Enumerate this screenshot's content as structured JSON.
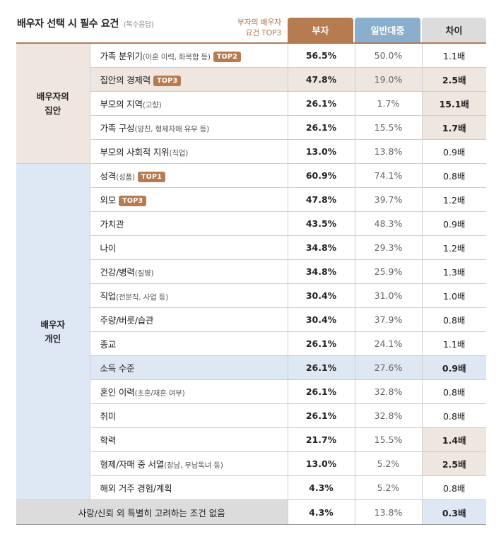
{
  "title": "배우자 선택 시 필수 요건",
  "title_sub": "(복수응답)",
  "top3_legend": [
    "부자의 배우자",
    "요건 TOP3"
  ],
  "headers": {
    "rich": "부자",
    "general": "일반대중",
    "diff": "차이"
  },
  "categories": {
    "family": [
      "배우자의",
      "집안"
    ],
    "personal": [
      "배우자",
      "개인"
    ]
  },
  "rows": [
    {
      "label": "가족 분위기",
      "note": "(이혼 이력, 화목함 등)",
      "tag": "TOP2",
      "rich": "56.5%",
      "general": "50.0%",
      "diff": "1.1배"
    },
    {
      "label": "집안의 경제력",
      "note": "",
      "tag": "TOP3",
      "rich": "47.8%",
      "general": "19.0%",
      "diff": "2.5배"
    },
    {
      "label": "부모의 지역",
      "note": "(고향)",
      "tag": "",
      "rich": "26.1%",
      "general": "1.7%",
      "diff": "15.1배"
    },
    {
      "label": "가족 구성",
      "note": "(양친, 형제자매 유무 등)",
      "tag": "",
      "rich": "26.1%",
      "general": "15.5%",
      "diff": "1.7배"
    },
    {
      "label": "부모의 사회적 지위",
      "note": "(직업)",
      "tag": "",
      "rich": "13.0%",
      "general": "13.8%",
      "diff": "0.9배"
    },
    {
      "label": "성격",
      "note": "(성품)",
      "tag": "TOP1",
      "rich": "60.9%",
      "general": "74.1%",
      "diff": "0.8배"
    },
    {
      "label": "외모",
      "note": "",
      "tag": "TOP3",
      "rich": "47.8%",
      "general": "39.7%",
      "diff": "1.2배"
    },
    {
      "label": "가치관",
      "note": "",
      "tag": "",
      "rich": "43.5%",
      "general": "48.3%",
      "diff": "0.9배"
    },
    {
      "label": "나이",
      "note": "",
      "tag": "",
      "rich": "34.8%",
      "general": "29.3%",
      "diff": "1.2배"
    },
    {
      "label": "건강/병력",
      "note": "(질병)",
      "tag": "",
      "rich": "34.8%",
      "general": "25.9%",
      "diff": "1.3배"
    },
    {
      "label": "직업",
      "note": "(전문직, 사업 등)",
      "tag": "",
      "rich": "30.4%",
      "general": "31.0%",
      "diff": "1.0배"
    },
    {
      "label": "주량/버릇/습관",
      "note": "",
      "tag": "",
      "rich": "30.4%",
      "general": "37.9%",
      "diff": "0.8배"
    },
    {
      "label": "종교",
      "note": "",
      "tag": "",
      "rich": "26.1%",
      "general": "24.1%",
      "diff": "1.1배"
    },
    {
      "label": "소득 수준",
      "note": "",
      "tag": "",
      "rich": "26.1%",
      "general": "27.6%",
      "diff": "0.9배"
    },
    {
      "label": "혼인 이력",
      "note": "(초혼/재혼 여부)",
      "tag": "",
      "rich": "26.1%",
      "general": "32.8%",
      "diff": "0.8배"
    },
    {
      "label": "취미",
      "note": "",
      "tag": "",
      "rich": "26.1%",
      "general": "32.8%",
      "diff": "0.8배"
    },
    {
      "label": "학력",
      "note": "",
      "tag": "",
      "rich": "21.7%",
      "general": "15.5%",
      "diff": "1.4배"
    },
    {
      "label": "형제/자매 중 서열",
      "note": "(장남, 무남독녀 등)",
      "tag": "",
      "rich": "13.0%",
      "general": "5.2%",
      "diff": "2.5배"
    },
    {
      "label": "해외 거주 경험/계획",
      "note": "",
      "tag": "",
      "rich": "4.3%",
      "general": "5.2%",
      "diff": "0.8배"
    }
  ],
  "footer": {
    "label": "사랑/신뢰 외 특별히 고려하는 조건 없음",
    "rich": "4.3%",
    "general": "13.8%",
    "diff": "0.3배"
  },
  "colors": {
    "rich": "#b77b52",
    "general": "#8aaecd",
    "family_tint": "#f0e6e0",
    "personal_tint": "#dde8f4"
  }
}
